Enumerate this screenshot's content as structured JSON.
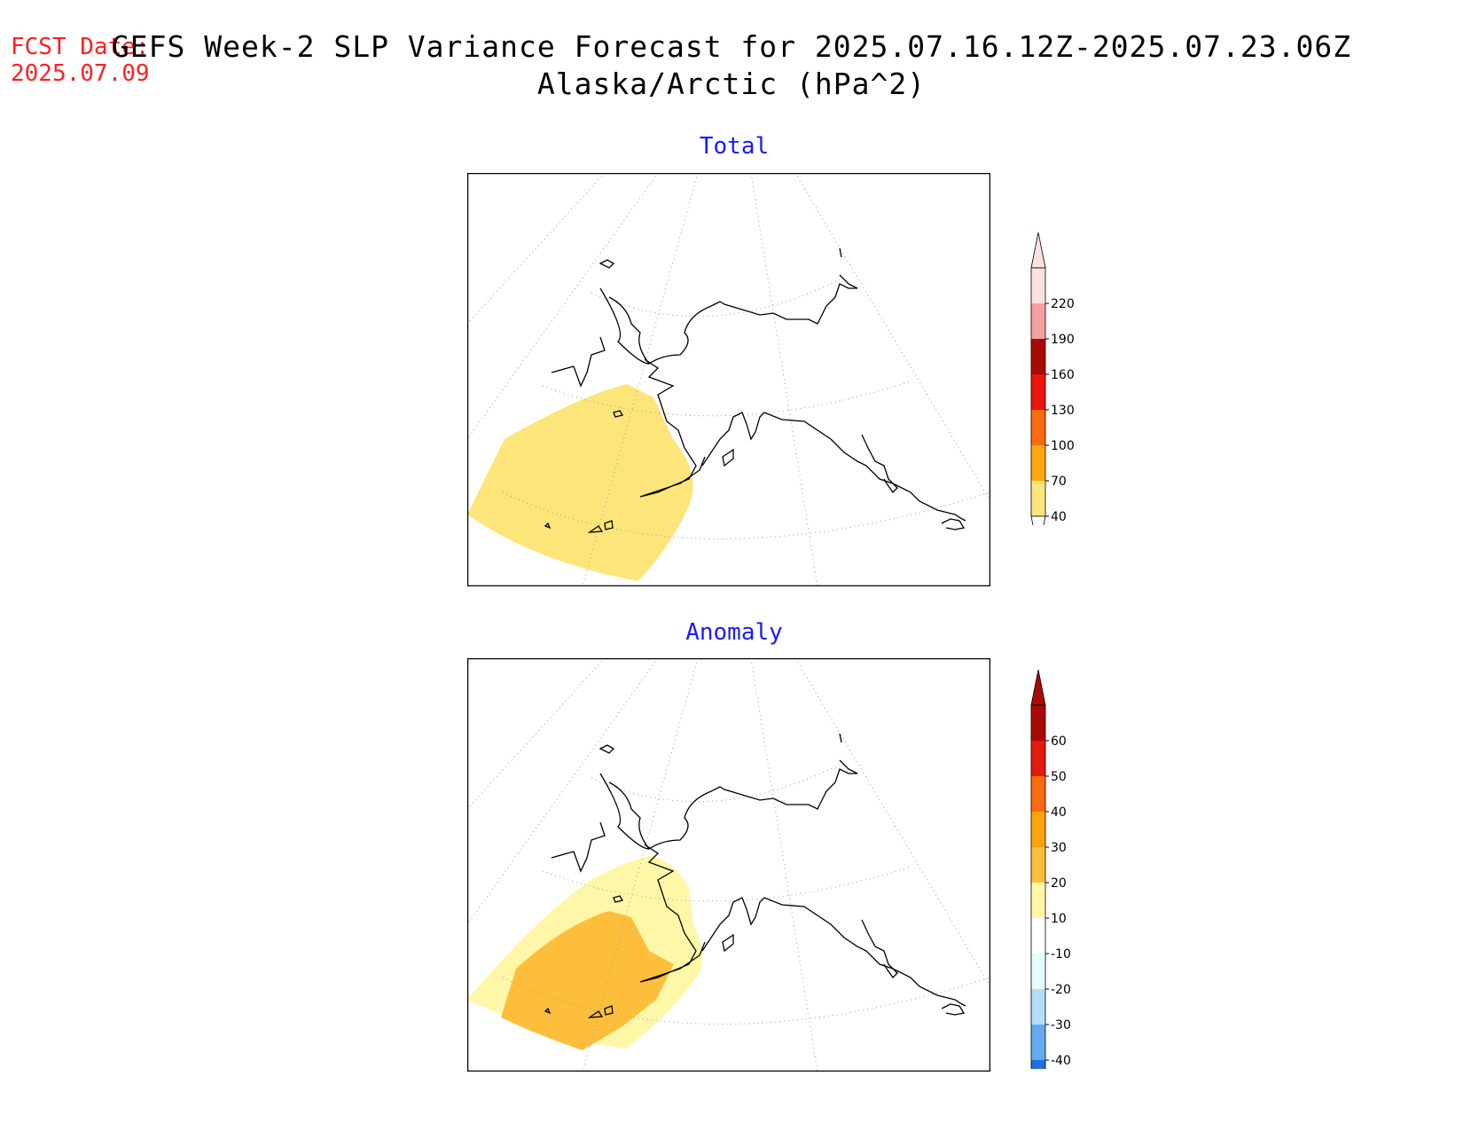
{
  "header": {
    "fcst_label": "FCST Date:",
    "fcst_date": "2025.07.09",
    "title_line1": "GEFS Week-2 SLP Variance Forecast for 2025.07.16.12Z-2025.07.23.06Z",
    "title_line2": "Alaska/Arctic (hPa^2)"
  },
  "panels": [
    {
      "title": "Total",
      "colorbar": {
        "ticks": [
          "40",
          "70",
          "100",
          "130",
          "160",
          "190",
          "220"
        ],
        "colors": [
          "#fde57a",
          "#fda70d",
          "#fb6a0d",
          "#e8160c",
          "#a90a06",
          "#f5a0a0",
          "#fde0e0"
        ],
        "extend_low_color": "#ffffff",
        "extend_high_color": "#fde0e0"
      }
    },
    {
      "title": "Anomaly",
      "colorbar": {
        "ticks": [
          "-40",
          "-30",
          "-20",
          "-10",
          "10",
          "20",
          "30",
          "40",
          "50",
          "60"
        ],
        "colors": [
          "#1f6fde",
          "#65a9ee",
          "#b4def8",
          "#e6fbfc",
          "#ffffff",
          "#fff7a8",
          "#fdbf3b",
          "#fda30d",
          "#fb6a0d",
          "#e31a0c",
          "#a90a06"
        ],
        "extend_low_color": "#1f6fde",
        "extend_high_color": "#a90a06"
      }
    }
  ]
}
